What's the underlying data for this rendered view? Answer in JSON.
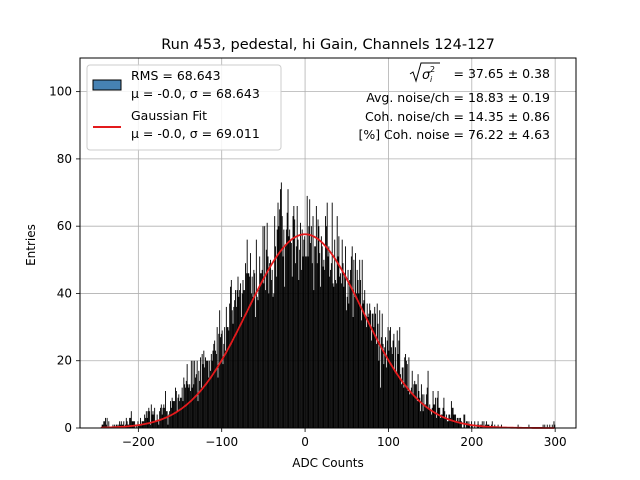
{
  "chart_data": {
    "type": "bar",
    "title": "Run 453, pedestal, hi Gain, Channels 124-127",
    "xlabel": "ADC Counts",
    "ylabel": "Entries",
    "xlim": [
      -270,
      325
    ],
    "ylim": [
      0,
      110
    ],
    "xticks": [
      -200,
      -100,
      0,
      100,
      200,
      300
    ],
    "yticks": [
      0,
      20,
      40,
      60,
      80,
      100
    ],
    "grid": true,
    "legend_position": "top-left",
    "histogram": {
      "name": "RMS = 68.643",
      "stats_label": "μ = -0.0, σ = 68.643",
      "color": "#000000",
      "legend_swatch_color": "#4682b4",
      "bin_range": [
        -245,
        300
      ],
      "bin_width": 1,
      "rms": 68.643,
      "mean": 0.0,
      "approx_counts_every_10": {
        "x": [
          -240,
          -230,
          -220,
          -210,
          -200,
          -190,
          -180,
          -170,
          -160,
          -150,
          -140,
          -130,
          -120,
          -110,
          -100,
          -90,
          -80,
          -70,
          -60,
          -50,
          -40,
          -30,
          -20,
          -10,
          0,
          10,
          20,
          30,
          40,
          50,
          60,
          70,
          80,
          90,
          100,
          110,
          120,
          130,
          140,
          150,
          160,
          170,
          180,
          190,
          200,
          210,
          220,
          230,
          240,
          250,
          260,
          270,
          280,
          290,
          300
        ],
        "y": [
          1,
          1,
          1,
          2,
          2,
          3,
          4,
          6,
          8,
          10,
          13,
          16,
          20,
          24,
          28,
          33,
          38,
          42,
          47,
          51,
          54,
          56,
          58,
          58,
          59,
          58,
          56,
          54,
          51,
          48,
          44,
          39,
          34,
          29,
          25,
          21,
          17,
          13,
          10,
          8,
          6,
          4,
          3,
          2,
          1,
          1,
          1,
          0,
          0,
          0,
          0,
          0,
          0,
          0,
          1
        ]
      }
    },
    "fit": {
      "name": "Gaussian Fit",
      "stats_label": "μ = -0.0, σ = 69.011",
      "color": "#e31a1c",
      "mu": 0.0,
      "sigma": 69.011,
      "amplitude": 57.6,
      "x_range": [
        -245,
        300
      ]
    },
    "annotations": {
      "line1_value": " = 37.65 ± 0.38",
      "line2": "Avg. noise/ch = 18.83 ± 0.19",
      "line3": "Coh. noise/ch = 14.35 ± 0.86",
      "line4": "[%] Coh. noise = 76.22 ± 4.63"
    }
  }
}
